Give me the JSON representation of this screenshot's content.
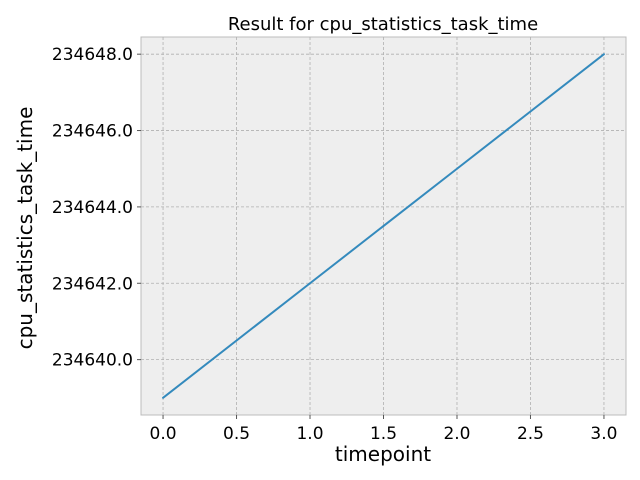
{
  "chart_data": {
    "type": "line",
    "title": "Result for cpu_statistics_task_time",
    "xlabel": "timepoint",
    "ylabel": "cpu_statistics_task_time",
    "x": [
      0.0,
      1.0,
      2.0,
      3.0
    ],
    "series": [
      {
        "values": [
          234639.0,
          234642.0,
          234645.0,
          234648.0
        ],
        "color": "#348abd"
      }
    ],
    "xlim": [
      -0.15,
      3.15
    ],
    "ylim": [
      234638.55,
      234648.45
    ],
    "xticks": [
      0.0,
      0.5,
      1.0,
      1.5,
      2.0,
      2.5,
      3.0
    ],
    "xtick_labels": [
      "0.0",
      "0.5",
      "1.0",
      "1.5",
      "2.0",
      "2.5",
      "3.0"
    ],
    "yticks": [
      234640.0,
      234642.0,
      234644.0,
      234646.0,
      234648.0
    ],
    "ytick_labels": [
      "234640.0",
      "234642.0",
      "234644.0",
      "234646.0",
      "234648.0"
    ],
    "grid": true,
    "background_color": "#eeeeee"
  }
}
